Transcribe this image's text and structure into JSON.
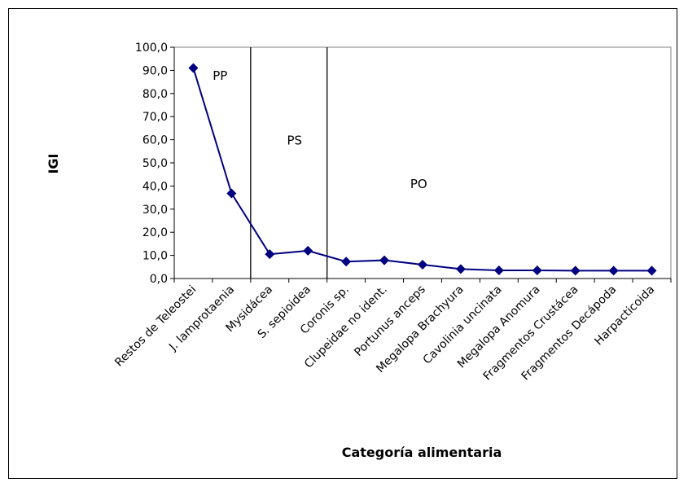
{
  "chart_data": {
    "type": "line",
    "xlabel": "Categoría alimentaria",
    "ylabel": "IGI",
    "ylim": [
      0,
      100
    ],
    "ytick_step": 10,
    "ytick_labels": [
      "0,0",
      "10,0",
      "20,0",
      "30,0",
      "40,0",
      "50,0",
      "60,0",
      "70,0",
      "80,0",
      "90,0",
      "100,0"
    ],
    "grid": false,
    "categories": [
      "Restos de Teleostei",
      "J. lamprotaenia",
      "Mysidácea",
      "S. sepioidea",
      "Coronis sp.",
      "Clupeidae no ident.",
      "Portunus anceps",
      "Megalopa Brachyura",
      "Cavolinia uncinata",
      "Megalopa  Anomura",
      "Fragmentos Crustácea",
      "Fragmentos Decápoda",
      "Harpacticoida"
    ],
    "series": [
      {
        "values": [
          91.0,
          36.8,
          10.5,
          12.0,
          7.3,
          7.9,
          6.0,
          4.1,
          3.5,
          3.5,
          3.4,
          3.4,
          3.4
        ],
        "color": "#000080",
        "marker": "diamond"
      }
    ],
    "dividers": [
      1.5,
      3.5
    ],
    "zones": [
      {
        "label": "PP",
        "x": 0.7,
        "y": 86
      },
      {
        "label": "PS",
        "x": 2.65,
        "y": 58
      },
      {
        "label": "PO",
        "x": 5.9,
        "y": 39
      }
    ]
  }
}
